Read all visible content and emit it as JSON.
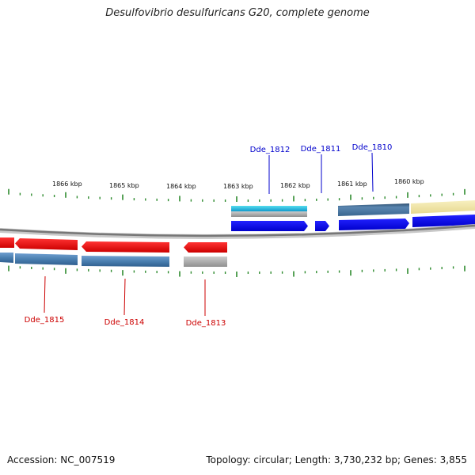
{
  "title": "Desulfovibrio desulfuricans G20, complete genome",
  "scale_labels": [
    "1866 kbp",
    "1865 kbp",
    "1864 kbp",
    "1863 kbp",
    "1862 kbp",
    "1861 kbp",
    "1860 kbp"
  ],
  "genes_forward": [
    {
      "id": "Dde_1812",
      "color": "#0000dd"
    },
    {
      "id": "Dde_1811",
      "color": "#0000dd"
    },
    {
      "id": "Dde_1810",
      "color": "#0000dd"
    }
  ],
  "genes_reverse": [
    {
      "id": "Dde_1815",
      "color": "#cc0000"
    },
    {
      "id": "Dde_1814",
      "color": "#cc0000"
    },
    {
      "id": "Dde_1813",
      "color": "#cc0000"
    }
  ],
  "colors": {
    "forward_gene": "#0000ee",
    "reverse_gene": "#ee0000",
    "tick": "#2e8b2e",
    "backbone": "#888888",
    "cog_blue": "#4a7fb0",
    "cog_cyan": "#22bbdd",
    "cog_gray": "#a0a0a0",
    "cog_yellow": "#f0e6a0"
  },
  "footer": {
    "accession": "Accession: NC_007519",
    "summary": "Topology: circular; Length: 3,730,232 bp; Genes: 3,855"
  }
}
